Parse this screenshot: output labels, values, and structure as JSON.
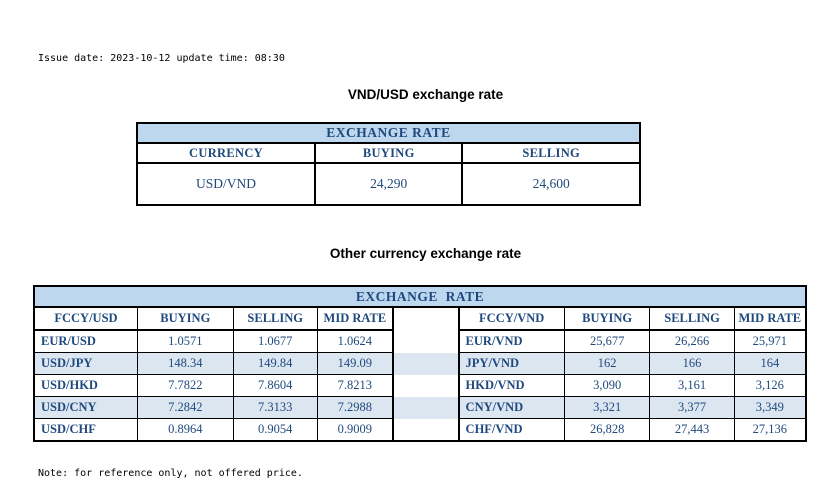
{
  "meta": {
    "issue_line": "Issue date: 2023-10-12 update time: 08:30",
    "note_line": "Note: for reference only, not offered price."
  },
  "colors": {
    "text_blue": "#1F497D",
    "banner_bg": "#BDD7EE",
    "stripe_bg": "#DCE6F1",
    "border": "#000000"
  },
  "usd_table": {
    "title": "VND/USD exchange rate",
    "banner": "EXCHANGE RATE",
    "headers": [
      "CURRENCY",
      "BUYING",
      "SELLING"
    ],
    "row": {
      "currency": "USD/VND",
      "buying": "24,290",
      "selling": "24,600"
    }
  },
  "other_table": {
    "title": "Other currency exchange rate",
    "banner": "EXCHANGE  RATE",
    "headers": [
      "FCCY/USD",
      "BUYING",
      "SELLING",
      "MID RATE",
      "",
      "FCCY/VND",
      "BUYING",
      "SELLING",
      "MID RATE"
    ],
    "rows": [
      [
        "EUR/USD",
        "1.0571",
        "1.0677",
        "1.0624",
        "",
        "EUR/VND",
        "25,677",
        "26,266",
        "25,971"
      ],
      [
        "USD/JPY",
        "148.34",
        "149.84",
        "149.09",
        "",
        "JPY/VND",
        "162",
        "166",
        "164"
      ],
      [
        "USD/HKD",
        "7.7822",
        "7.8604",
        "7.8213",
        "",
        "HKD/VND",
        "3,090",
        "3,161",
        "3,126"
      ],
      [
        "USD/CNY",
        "7.2842",
        "7.3133",
        "7.2988",
        "",
        "CNY/VND",
        "3,321",
        "3,377",
        "3,349"
      ],
      [
        "USD/CHF",
        "0.8964",
        "0.9054",
        "0.9009",
        "",
        "CHF/VND",
        "26,828",
        "27,443",
        "27,136"
      ]
    ]
  }
}
